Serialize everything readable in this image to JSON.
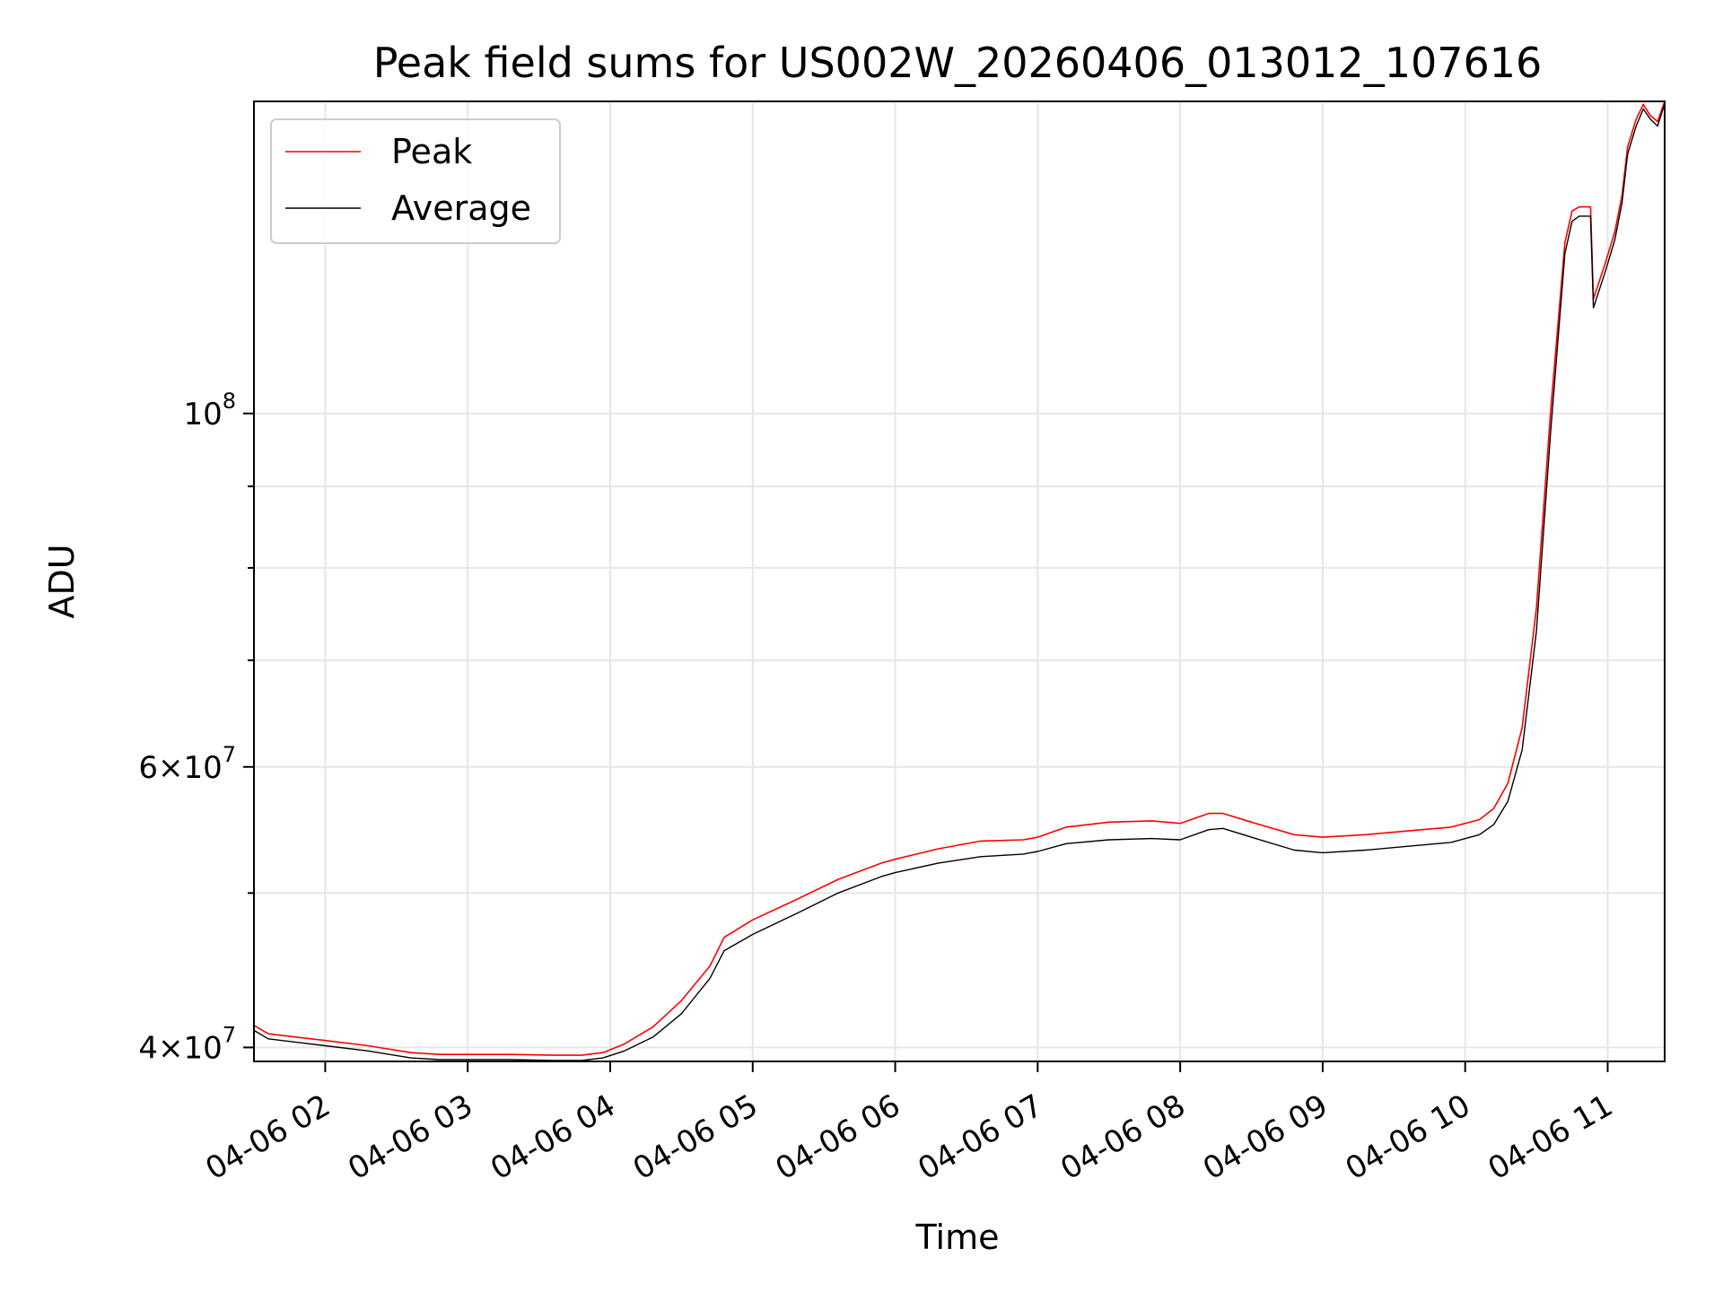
{
  "chart_data": {
    "type": "line",
    "title": "Peak field sums for US002W_20260406_013012_107616",
    "xlabel": "Time",
    "ylabel": "ADU",
    "yscale": "log",
    "xlim": [
      1.5,
      11.4
    ],
    "ylim": [
      39200000,
      157000000
    ],
    "grid": true,
    "legend_position": "top-left",
    "x_ticks": [
      {
        "value": 2,
        "label": "04-06 02"
      },
      {
        "value": 3,
        "label": "04-06 03"
      },
      {
        "value": 4,
        "label": "04-06 04"
      },
      {
        "value": 5,
        "label": "04-06 05"
      },
      {
        "value": 6,
        "label": "04-06 06"
      },
      {
        "value": 7,
        "label": "04-06 07"
      },
      {
        "value": 8,
        "label": "04-06 08"
      },
      {
        "value": 9,
        "label": "04-06 09"
      },
      {
        "value": 10,
        "label": "04-06 10"
      },
      {
        "value": 11,
        "label": "04-06 11"
      }
    ],
    "y_ticks": [
      {
        "value": 40000000,
        "mantissa": "4",
        "exponent": "7"
      },
      {
        "value": 60000000,
        "mantissa": "6",
        "exponent": "7"
      },
      {
        "value": 100000000,
        "mantissa": "",
        "exponent": "8"
      }
    ],
    "y_minor_ticks": [
      50000000,
      70000000,
      80000000,
      90000000
    ],
    "series": [
      {
        "name": "Peak",
        "color": "#ff0000",
        "x": [
          1.5,
          1.6,
          1.8,
          2.0,
          2.3,
          2.6,
          2.8,
          3.0,
          3.3,
          3.6,
          3.8,
          3.95,
          4.1,
          4.3,
          4.5,
          4.7,
          4.8,
          5.0,
          5.3,
          5.6,
          5.9,
          6.0,
          6.3,
          6.6,
          6.9,
          7.0,
          7.2,
          7.5,
          7.8,
          8.0,
          8.2,
          8.3,
          8.5,
          8.8,
          9.0,
          9.3,
          9.6,
          9.9,
          10.1,
          10.2,
          10.3,
          10.4,
          10.5,
          10.6,
          10.7,
          10.75,
          10.8,
          10.88,
          10.9,
          10.98,
          11.05,
          11.1,
          11.14,
          11.2,
          11.25,
          11.3,
          11.35,
          11.4
        ],
        "y": [
          41300000,
          40800000,
          40600000,
          40400000,
          40100000,
          39700000,
          39600000,
          39600000,
          39600000,
          39550000,
          39550000,
          39700000,
          40200000,
          41200000,
          42800000,
          45000000,
          46900000,
          48100000,
          49500000,
          51000000,
          52200000,
          52500000,
          53300000,
          53900000,
          54000000,
          54200000,
          55000000,
          55400000,
          55500000,
          55300000,
          56100000,
          56100000,
          55400000,
          54400000,
          54200000,
          54400000,
          54700000,
          55000000,
          55600000,
          56500000,
          58600000,
          63500000,
          75500000,
          100500000,
          128000000,
          134000000,
          134800000,
          134800000,
          118000000,
          124000000,
          130000000,
          137000000,
          147000000,
          153000000,
          156300000,
          153800000,
          152500000,
          157000000
        ]
      },
      {
        "name": "Average",
        "color": "#000000",
        "x": [
          1.5,
          1.6,
          1.8,
          2.0,
          2.3,
          2.6,
          2.8,
          3.0,
          3.3,
          3.6,
          3.8,
          3.95,
          4.1,
          4.3,
          4.5,
          4.7,
          4.8,
          5.0,
          5.3,
          5.6,
          5.9,
          6.0,
          6.3,
          6.6,
          6.9,
          7.0,
          7.2,
          7.5,
          7.8,
          8.0,
          8.2,
          8.3,
          8.5,
          8.8,
          9.0,
          9.3,
          9.6,
          9.9,
          10.1,
          10.2,
          10.3,
          10.4,
          10.5,
          10.6,
          10.7,
          10.75,
          10.8,
          10.88,
          10.9,
          10.98,
          11.05,
          11.1,
          11.14,
          11.2,
          11.25,
          11.3,
          11.35,
          11.4
        ],
        "y": [
          41000000,
          40500000,
          40300000,
          40100000,
          39800000,
          39400000,
          39300000,
          39300000,
          39300000,
          39250000,
          39250000,
          39400000,
          39800000,
          40600000,
          42000000,
          44200000,
          46000000,
          47100000,
          48500000,
          50000000,
          51200000,
          51500000,
          52200000,
          52700000,
          52900000,
          53100000,
          53700000,
          54000000,
          54100000,
          54000000,
          54800000,
          54900000,
          54200000,
          53200000,
          53000000,
          53200000,
          53500000,
          53800000,
          54400000,
          55200000,
          57100000,
          61500000,
          73000000,
          97500000,
          126000000,
          132000000,
          133000000,
          133000000,
          116500000,
          122500000,
          128500000,
          135500000,
          145500000,
          151500000,
          155300000,
          153000000,
          151500000,
          156500000
        ]
      }
    ]
  }
}
